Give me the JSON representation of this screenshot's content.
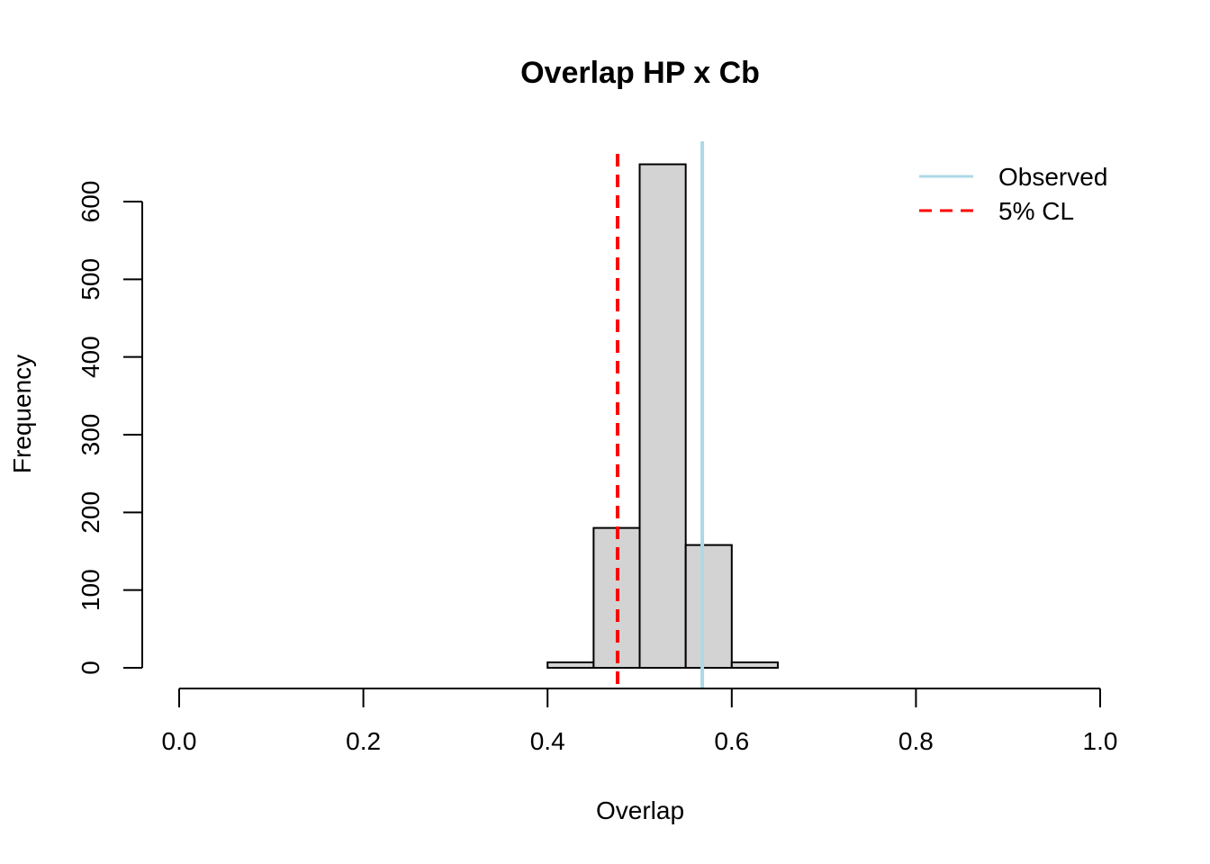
{
  "chart_data": {
    "type": "histogram",
    "title": "Overlap HP x Cb",
    "xlabel": "Overlap",
    "ylabel": "Frequency",
    "xlim": [
      0.0,
      1.0
    ],
    "ylim": [
      0,
      600
    ],
    "xticks": [
      "0.0",
      "0.2",
      "0.4",
      "0.6",
      "0.8",
      "1.0"
    ],
    "yticks": [
      "0",
      "100",
      "200",
      "300",
      "400",
      "500",
      "600"
    ],
    "bins": [
      {
        "start": 0.4,
        "end": 0.45,
        "count": 7
      },
      {
        "start": 0.45,
        "end": 0.5,
        "count": 180
      },
      {
        "start": 0.5,
        "end": 0.55,
        "count": 648
      },
      {
        "start": 0.55,
        "end": 0.6,
        "count": 158
      },
      {
        "start": 0.6,
        "end": 0.65,
        "count": 7
      }
    ],
    "bar_fill": "#d3d3d3",
    "reference_lines": [
      {
        "name": "Observed",
        "x": 0.568,
        "color": "#add8e6",
        "style": "solid"
      },
      {
        "name": "5% CL",
        "x": 0.476,
        "color": "#ff0000",
        "style": "dashed"
      }
    ],
    "legend": {
      "position": "top-right",
      "entries": [
        "Observed",
        "5% CL"
      ]
    },
    "grid": false
  }
}
